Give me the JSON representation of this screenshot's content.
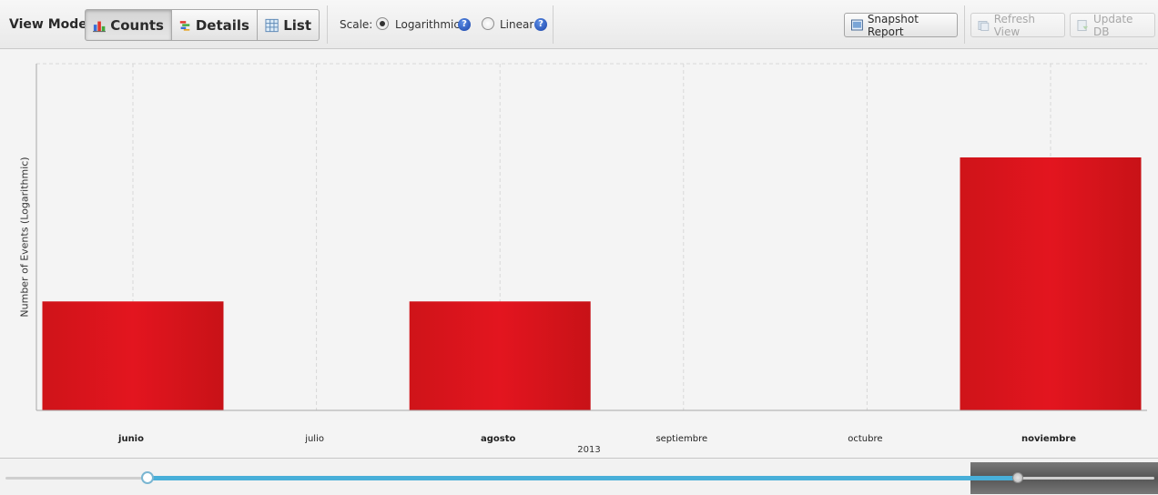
{
  "toolbar": {
    "view_mode_label": "View Mode:",
    "modes": [
      {
        "label": "Counts",
        "icon": "bar-chart-icon",
        "active": true
      },
      {
        "label": "Details",
        "icon": "details-icon",
        "active": false
      },
      {
        "label": "List",
        "icon": "table-icon",
        "active": false
      }
    ],
    "scale_label": "Scale:",
    "scale_options": [
      {
        "label": "Logarithmic",
        "selected": true
      },
      {
        "label": "Linear",
        "selected": false
      }
    ],
    "help_glyph": "?",
    "snapshot_label": "Snapshot Report",
    "refresh_label": "Refresh View",
    "update_db_label": "Update DB"
  },
  "chart_data": {
    "type": "bar",
    "ylabel": "Number of Events (Logarithmic)",
    "xlabel": "2013",
    "scale": "log",
    "categories": [
      "junio",
      "julio",
      "agosto",
      "septiembre",
      "octubre",
      "noviembre"
    ],
    "bold_categories": [
      "junio",
      "agosto",
      "noviembre"
    ],
    "values": [
      1,
      0,
      1,
      0,
      0,
      4
    ],
    "bar_color": "#e3151f",
    "grid": true
  },
  "slider": {
    "fill_color": "#48afd9",
    "selection_start_fraction": 0.124,
    "selection_end_fraction": 0.881
  }
}
